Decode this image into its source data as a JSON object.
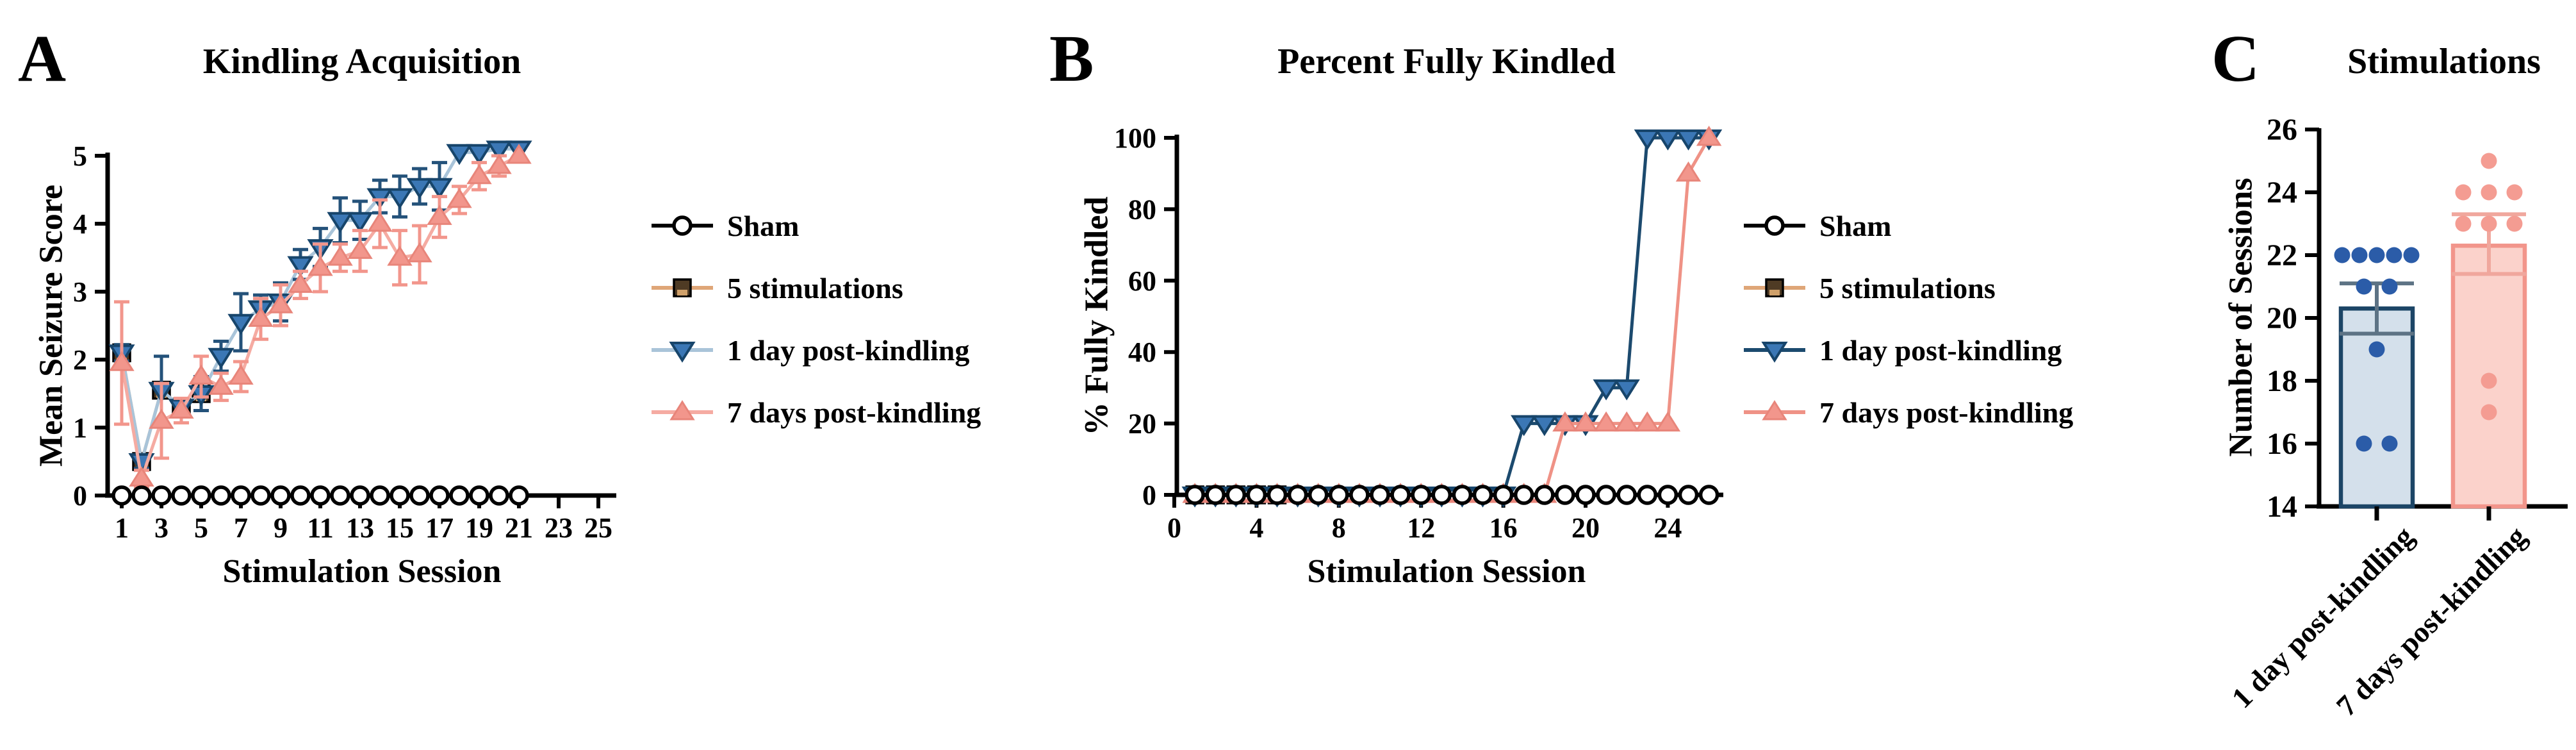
{
  "figure": {
    "background": "#ffffff"
  },
  "chart_data": [
    {
      "type": "line",
      "panel_label": "A",
      "title": "Kindling Acquisition",
      "xlabel": "Stimulation Session",
      "ylabel": "Mean Seizure Score",
      "xlim": [
        0,
        26
      ],
      "ylim": [
        0,
        5
      ],
      "xticks": [
        1,
        3,
        5,
        7,
        9,
        11,
        13,
        15,
        17,
        19,
        21,
        23,
        25
      ],
      "yticks": [
        0,
        1,
        2,
        3,
        4,
        5
      ],
      "grid": false,
      "legend_position": "right",
      "legend": [
        "Sham",
        "5 stimulations",
        "1 day post-kindling",
        "7 days post-kindling"
      ],
      "series": [
        {
          "name": "5 stimulations",
          "marker": "square",
          "color": "#4f3b24",
          "accent": "#cfa06a",
          "marker_stroke": "#000000",
          "line_color": "#dfa678",
          "err_color": "#dfa678",
          "x": [
            1,
            2,
            3,
            4,
            5
          ],
          "y": [
            2.1,
            0.5,
            1.55,
            1.3,
            1.5
          ],
          "err": [
            0,
            0,
            0,
            0,
            0
          ]
        },
        {
          "name": "1 day post-kindling",
          "marker": "triangle-down",
          "color": "#3b77b5",
          "marker_stroke": "#17456b",
          "line_color": "#a9c4d9",
          "err_color": "#24527a",
          "x": [
            1,
            2,
            3,
            4,
            5,
            6,
            7,
            8,
            9,
            10,
            11,
            12,
            13,
            14,
            15,
            16,
            17,
            18,
            19,
            20,
            21
          ],
          "y": [
            2.1,
            0.5,
            1.55,
            1.3,
            1.5,
            2.05,
            2.55,
            2.75,
            2.85,
            3.4,
            3.65,
            4.05,
            4.05,
            4.4,
            4.4,
            4.55,
            4.55,
            5.05,
            5.05,
            5.1,
            5.1
          ],
          "err": [
            0.12,
            0.1,
            0.5,
            0.12,
            0.25,
            0.22,
            0.42,
            0.2,
            0.28,
            0.22,
            0.28,
            0.33,
            0.28,
            0.24,
            0.3,
            0.26,
            0.35,
            0,
            0,
            0,
            0
          ]
        },
        {
          "name": "7 days post-kindling",
          "marker": "triangle-up",
          "color": "#f2968c",
          "marker_stroke": "#e8857a",
          "line_color": "#f5aba2",
          "err_color": "#f2968c",
          "x": [
            1,
            2,
            3,
            4,
            5,
            6,
            7,
            8,
            9,
            10,
            11,
            12,
            13,
            14,
            15,
            16,
            17,
            18,
            19,
            20,
            21
          ],
          "y": [
            1.95,
            0.25,
            1.1,
            1.25,
            1.75,
            1.6,
            1.75,
            2.6,
            2.8,
            3.1,
            3.35,
            3.5,
            3.6,
            4.0,
            3.5,
            3.55,
            4.1,
            4.35,
            4.7,
            4.85,
            5.0
          ],
          "err": [
            0.9,
            0.12,
            0.55,
            0.18,
            0.3,
            0.2,
            0.22,
            0.3,
            0.3,
            0.2,
            0.35,
            0.2,
            0.3,
            0.35,
            0.4,
            0.42,
            0.3,
            0.2,
            0.2,
            0.15,
            0
          ]
        },
        {
          "name": "Sham",
          "marker": "circle-open",
          "color": "#ffffff",
          "marker_stroke": "#000000",
          "line_color": "#000000",
          "err_color": "#000000",
          "x": [
            1,
            2,
            3,
            4,
            5,
            6,
            7,
            8,
            9,
            10,
            11,
            12,
            13,
            14,
            15,
            16,
            17,
            18,
            19,
            20,
            21
          ],
          "y": [
            0,
            0,
            0,
            0,
            0,
            0,
            0,
            0,
            0,
            0,
            0,
            0,
            0,
            0,
            0,
            0,
            0,
            0,
            0,
            0,
            0
          ],
          "err": [
            0,
            0,
            0,
            0,
            0,
            0,
            0,
            0,
            0,
            0,
            0,
            0,
            0,
            0,
            0,
            0,
            0,
            0,
            0,
            0,
            0
          ]
        }
      ]
    },
    {
      "type": "line",
      "panel_label": "B",
      "title": "Percent Fully Kindled",
      "xlabel": "Stimulation Session",
      "ylabel": "% Fully Kindled",
      "xlim": [
        -0.5,
        27
      ],
      "ylim": [
        0,
        100
      ],
      "xticks": [
        0,
        4,
        8,
        12,
        16,
        20,
        24
      ],
      "yticks": [
        0,
        20,
        40,
        60,
        80,
        100
      ],
      "grid": false,
      "legend_position": "right",
      "legend": [
        "Sham",
        "5 stimulations",
        "1 day post-kindling",
        "7 days post-kindling"
      ],
      "series": [
        {
          "name": "5 stimulations",
          "marker": "square",
          "color": "#4f3b24",
          "accent": "#cfa06a",
          "marker_stroke": "#000000",
          "line_color": "#dfa678",
          "x": [
            1,
            2,
            3,
            4,
            5
          ],
          "y": [
            0,
            0,
            0,
            0,
            0
          ]
        },
        {
          "name": "1 day post-kindling",
          "marker": "triangle-down",
          "color": "#3b77b5",
          "marker_stroke": "#17456b",
          "line_color": "#1c4a6e",
          "x": [
            1,
            2,
            3,
            4,
            5,
            6,
            7,
            8,
            9,
            10,
            11,
            12,
            13,
            14,
            15,
            16,
            17,
            18,
            19,
            20,
            21,
            22,
            23,
            24,
            25,
            26
          ],
          "y": [
            0,
            0,
            0,
            0,
            0,
            0,
            0,
            0,
            0,
            0,
            0,
            0,
            0,
            0,
            0,
            0,
            20,
            20,
            20,
            20,
            30,
            30,
            100,
            100,
            100,
            100
          ]
        },
        {
          "name": "7 days post-kindling",
          "marker": "triangle-up",
          "color": "#f2968c",
          "marker_stroke": "#e8857a",
          "line_color": "#ef9286",
          "x": [
            1,
            2,
            3,
            4,
            5,
            6,
            7,
            8,
            9,
            10,
            11,
            12,
            13,
            14,
            15,
            16,
            17,
            18,
            19,
            20,
            21,
            22,
            23,
            24,
            25,
            26
          ],
          "y": [
            0,
            0,
            0,
            0,
            0,
            0,
            0,
            0,
            0,
            0,
            0,
            0,
            0,
            0,
            0,
            0,
            0,
            0,
            20,
            20,
            20,
            20,
            20,
            20,
            90,
            100
          ]
        },
        {
          "name": "Sham",
          "marker": "circle-open",
          "color": "#ffffff",
          "marker_stroke": "#000000",
          "line_color": "#000000",
          "x": [
            1,
            2,
            3,
            4,
            5,
            6,
            7,
            8,
            9,
            10,
            11,
            12,
            13,
            14,
            15,
            16,
            17,
            18,
            19,
            20,
            21,
            22,
            23,
            24,
            25,
            26
          ],
          "y": [
            0,
            0,
            0,
            0,
            0,
            0,
            0,
            0,
            0,
            0,
            0,
            0,
            0,
            0,
            0,
            0,
            0,
            0,
            0,
            0,
            0,
            0,
            0,
            0,
            0,
            0
          ]
        }
      ]
    },
    {
      "type": "bar",
      "panel_label": "C",
      "title": "Stimulations",
      "xlabel": "",
      "ylabel": "Number of Sessions",
      "ylim": [
        14,
        26
      ],
      "yticks": [
        14,
        16,
        18,
        20,
        22,
        24,
        26
      ],
      "grid": false,
      "categories": [
        "1 day post-kindling",
        "7 days post-kindling"
      ],
      "bars": [
        {
          "category": "1 day post-kindling",
          "mean": 20.3,
          "sem_low": 19.5,
          "sem_high": 21.1,
          "fill": "#d4e0eb",
          "border": "#1c4566",
          "dot_color": "#2b5ca8",
          "err_color": "#5d7385",
          "points": [
            22,
            22,
            22,
            22,
            22,
            21,
            21,
            19,
            16,
            16
          ]
        },
        {
          "category": "7 days post-kindling",
          "mean": 22.3,
          "sem_low": 21.4,
          "sem_high": 23.3,
          "fill": "#fbd2cb",
          "border": "#f2958b",
          "dot_color": "#f49c92",
          "err_color": "#f0a79d",
          "points": [
            25,
            24,
            24,
            24,
            23,
            23,
            23,
            18,
            17
          ]
        }
      ]
    }
  ]
}
